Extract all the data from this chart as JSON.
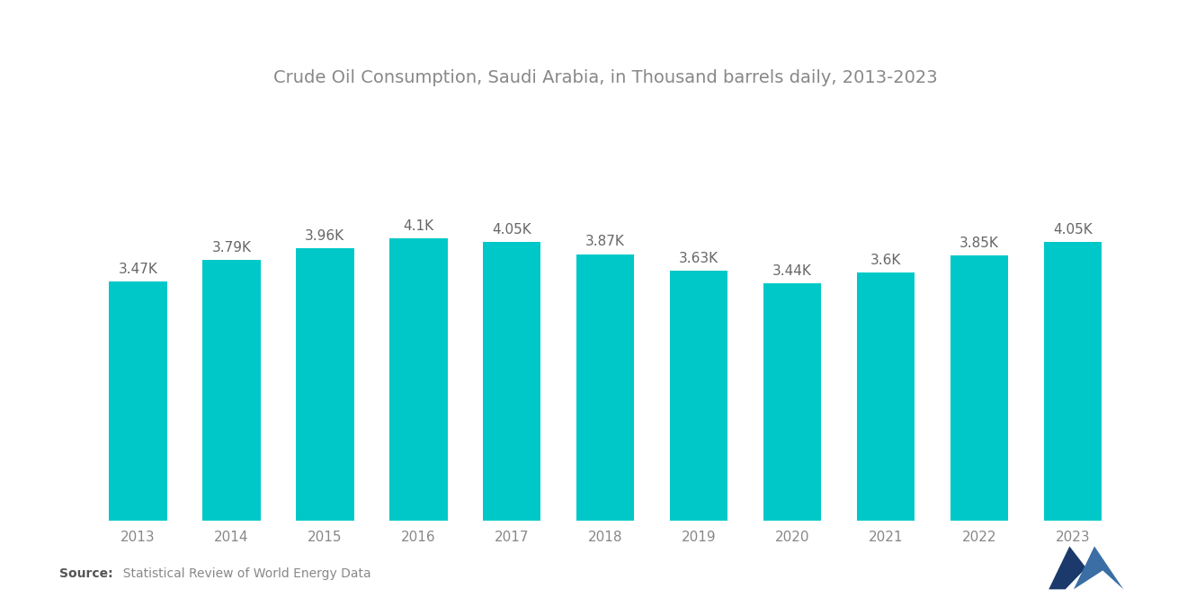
{
  "title": "Crude Oil Consumption, Saudi Arabia, in Thousand barrels daily, 2013-2023",
  "years": [
    2013,
    2014,
    2015,
    2016,
    2017,
    2018,
    2019,
    2020,
    2021,
    2022,
    2023
  ],
  "values": [
    3470,
    3790,
    3960,
    4100,
    4050,
    3870,
    3630,
    3440,
    3600,
    3850,
    4050
  ],
  "labels": [
    "3.47K",
    "3.79K",
    "3.96K",
    "4.1K",
    "4.05K",
    "3.87K",
    "3.63K",
    "3.44K",
    "3.6K",
    "3.85K",
    "4.05K"
  ],
  "bar_color": "#00C8C8",
  "background_color": "#ffffff",
  "title_fontsize": 14,
  "label_fontsize": 11,
  "tick_fontsize": 11,
  "source_bold": "Source:",
  "source_rest": "  Statistical Review of World Energy Data",
  "ylim": [
    0,
    6000
  ],
  "title_color": "#888888",
  "tick_color": "#888888",
  "label_color": "#666666"
}
